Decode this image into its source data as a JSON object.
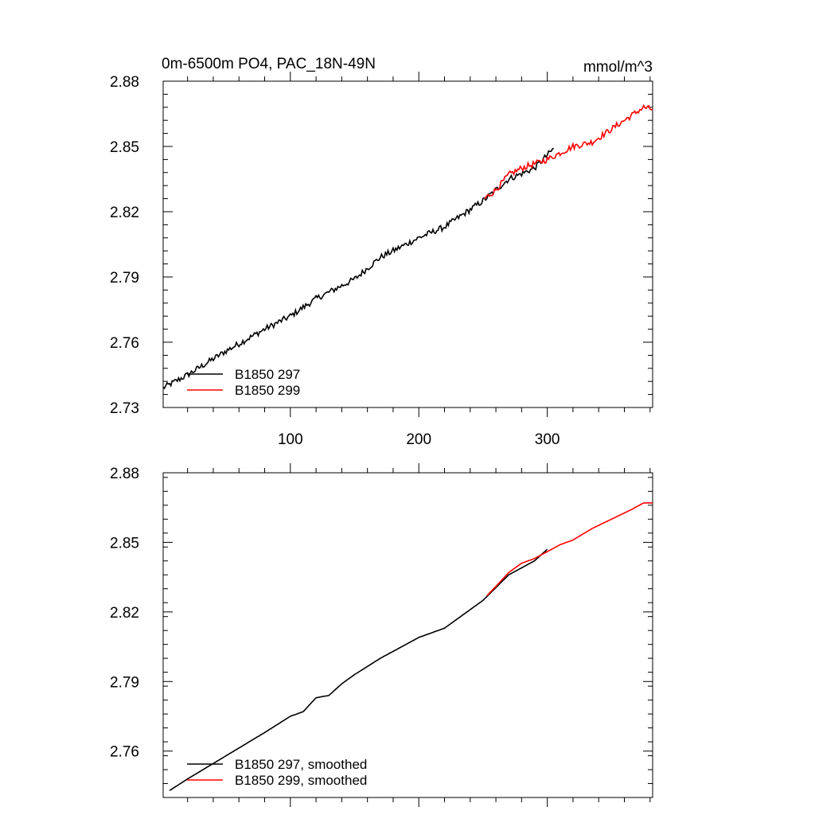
{
  "chart_data": [
    {
      "type": "line",
      "title": "0m-6500m PO4, PAC_18N-49N",
      "units": "mmol/m^3",
      "xlim": [
        1,
        382
      ],
      "ylim": [
        2.73,
        2.88
      ],
      "xticks": [
        100,
        200,
        300
      ],
      "xtick_labels": [
        "100",
        "200",
        "300"
      ],
      "yticks": [
        2.73,
        2.76,
        2.79,
        2.82,
        2.85,
        2.88
      ],
      "ytick_labels": [
        "2.73",
        "2.76",
        "2.79",
        "2.82",
        "2.85",
        "2.88"
      ],
      "legend_position": "bottom-left",
      "series": [
        {
          "name": "B1850 297",
          "color": "#000000",
          "noise": 0.0014,
          "x": [
            1,
            20,
            50,
            80,
            100,
            120,
            130,
            150,
            170,
            200,
            220,
            240,
            250,
            270,
            290,
            305
          ],
          "y": [
            2.739,
            2.745,
            2.756,
            2.766,
            2.772,
            2.78,
            2.783,
            2.789,
            2.799,
            2.808,
            2.813,
            2.821,
            2.825,
            2.835,
            2.84,
            2.849
          ]
        },
        {
          "name": "B1850 299",
          "color": "#ff0000",
          "noise": 0.0014,
          "x": [
            251,
            260,
            270,
            280,
            290,
            300,
            310,
            320,
            335,
            350,
            365,
            375,
            382
          ],
          "y": [
            2.826,
            2.83,
            2.837,
            2.84,
            2.842,
            2.844,
            2.847,
            2.85,
            2.852,
            2.858,
            2.864,
            2.868,
            2.867
          ]
        }
      ]
    },
    {
      "type": "line",
      "title": "",
      "units": "",
      "xlim": [
        1,
        382
      ],
      "ylim": [
        2.74,
        2.88
      ],
      "xticks": [
        100,
        200,
        300
      ],
      "xtick_labels": [],
      "yticks": [
        2.76,
        2.79,
        2.82,
        2.85,
        2.88
      ],
      "ytick_labels": [
        "2.76",
        "2.79",
        "2.82",
        "2.85",
        "2.88"
      ],
      "legend_position": "bottom-left",
      "series": [
        {
          "name": "B1850 297, smoothed",
          "color": "#000000",
          "noise": 0,
          "x": [
            6,
            20,
            50,
            80,
            100,
            110,
            120,
            130,
            140,
            150,
            170,
            200,
            220,
            240,
            250,
            270,
            290,
            300
          ],
          "y": [
            2.743,
            2.748,
            2.758,
            2.768,
            2.775,
            2.777,
            2.783,
            2.784,
            2.789,
            2.793,
            2.8,
            2.809,
            2.813,
            2.821,
            2.825,
            2.836,
            2.842,
            2.847
          ]
        },
        {
          "name": "B1850 299, smoothed",
          "color": "#ff0000",
          "noise": 0,
          "x": [
            253,
            260,
            270,
            280,
            290,
            300,
            310,
            320,
            335,
            350,
            365,
            375,
            382
          ],
          "y": [
            2.827,
            2.831,
            2.837,
            2.841,
            2.843,
            2.846,
            2.849,
            2.851,
            2.856,
            2.86,
            2.864,
            2.867,
            2.867
          ]
        }
      ]
    }
  ]
}
